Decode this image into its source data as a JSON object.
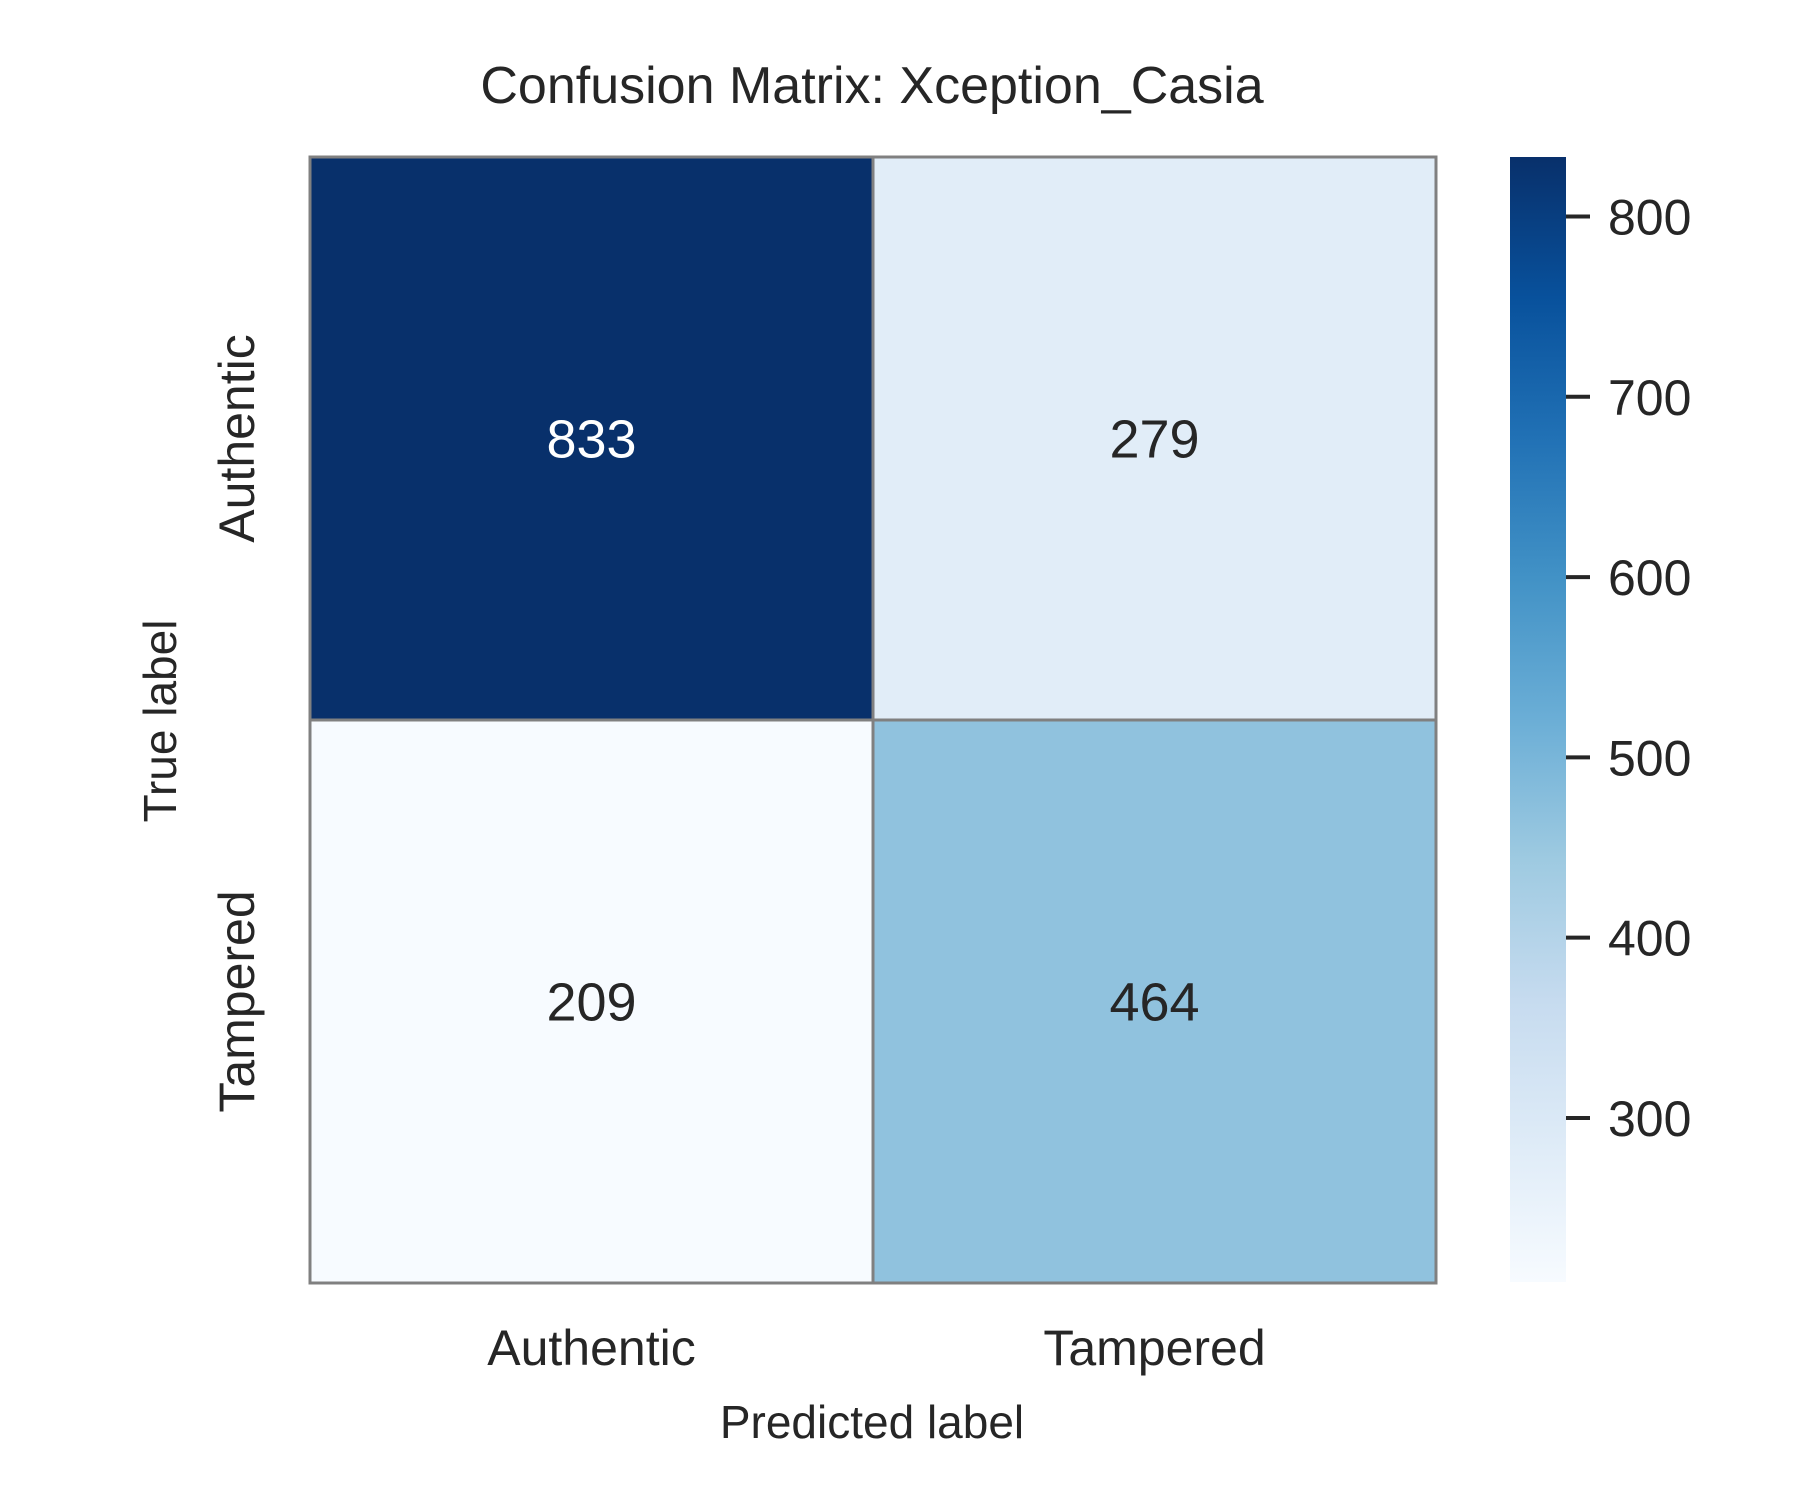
{
  "chart_data": {
    "type": "heatmap",
    "title": "Confusion Matrix: Xception_Casia",
    "xlabel": "Predicted label",
    "ylabel": "True label",
    "x_categories": [
      "Authentic",
      "Tampered"
    ],
    "y_categories": [
      "Authentic",
      "Tampered"
    ],
    "values": [
      [
        833,
        279
      ],
      [
        209,
        464
      ]
    ],
    "colormap": "Blues",
    "color_range": [
      209,
      833
    ],
    "colorbar_ticks": [
      300,
      400,
      500,
      600,
      700,
      800
    ],
    "cell_border_color": "#808080",
    "annotation_dark_text_color": "#262626",
    "annotation_light_text_color": "#ffffff"
  }
}
